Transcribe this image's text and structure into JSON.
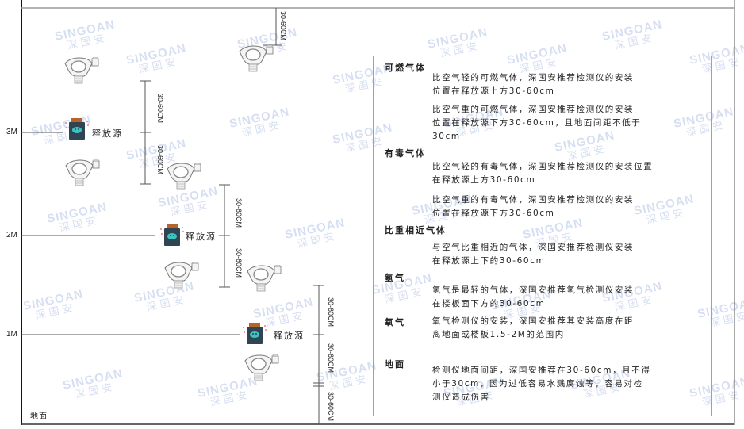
{
  "watermark": {
    "en": "SINGOAN",
    "cn": "深国安"
  },
  "levels": [
    "3M",
    "2M",
    "1M"
  ],
  "ground_label": "地面",
  "source_label": "释放源",
  "dimension_label": "30-60CM",
  "colors": {
    "frame": "#222222",
    "box_border": "#f08080",
    "source_body": "#2f4553",
    "source_cap": "#b5652a",
    "source_face": "#3fc2c2",
    "watermark": "#6f8fd0"
  },
  "notes": [
    {
      "heading": "可燃气体",
      "paragraphs": [
        "比空气轻的可燃气体，深国安推荐检测仪的安装\n位置在释放源上方30-60cm",
        "比空气重的可燃气体，深国安推荐检测仪的安装\n位置在释放源下方30-60cm，且地面间距不低于\n30cm"
      ]
    },
    {
      "heading": "有毒气体",
      "paragraphs": [
        "比空气轻的有毒气体，深国安推荐检测仪的安装位置\n在释放源上方30-60cm",
        "比空气重的有毒气体，深国安推荐检测仪的安装\n位置在释放源下方30-60cm"
      ]
    },
    {
      "heading": "比重相近气体",
      "paragraphs": [
        "与空气比重相近的气体，深国安推荐检测仪安装\n在释放源上下的30-60cm"
      ]
    },
    {
      "heading": "氢气",
      "paragraphs": [
        "氢气是最轻的气体，深国安推荐氢气检测仪安装\n在楼板面下方的30-60cm"
      ]
    },
    {
      "heading": "氧气",
      "paragraphs": [
        "氧气检测仪的安装，深国安推荐其安装高度在距\n离地面或楼板1.5-2M的范围内"
      ]
    },
    {
      "heading": "地面",
      "paragraphs": [
        "检测仪地面间距，深国安推荐在30-60cm，且不得\n小于30cm，因为过低容易水溅腐蚀等，容易对检\n测仪造成伤害"
      ]
    }
  ]
}
